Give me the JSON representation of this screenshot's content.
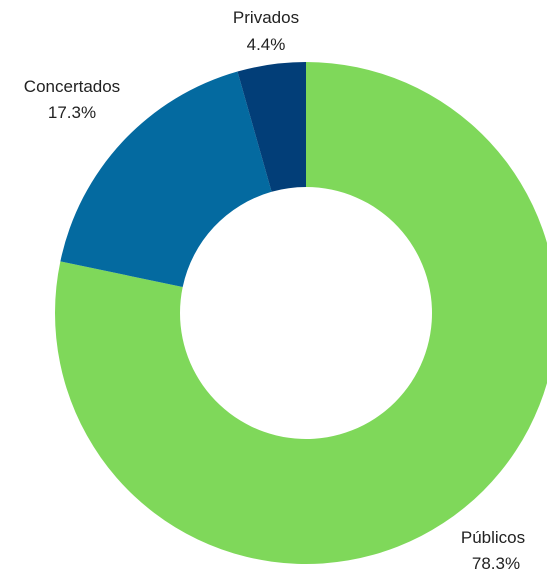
{
  "chart_data": {
    "type": "pie",
    "title": "",
    "donut": true,
    "slices": [
      {
        "label": "Públicos",
        "value_label": "78.3%",
        "value": 78.3,
        "color": "#7fd85a"
      },
      {
        "label": "Concertados",
        "value_label": "17.3%",
        "value": 17.3,
        "color": "#046aa0"
      },
      {
        "label": "Privados",
        "value_label": "4.4%",
        "value": 4.4,
        "color": "#023e78"
      }
    ]
  }
}
